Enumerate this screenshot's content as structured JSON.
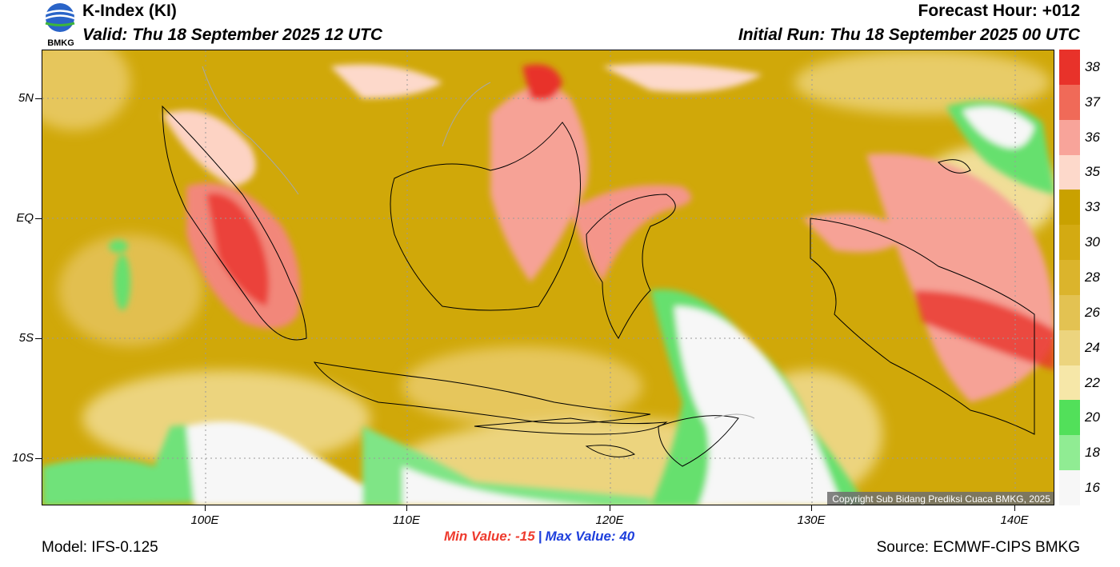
{
  "header": {
    "title": "K-Index (KI)",
    "valid": "Valid: Thu 18 September 2025 12 UTC",
    "forecast_hour": "Forecast Hour: +012",
    "initial_run": "Initial Run: Thu 18 September 2025 00 UTC"
  },
  "logo": {
    "text": "BMKG"
  },
  "map": {
    "lat_labels": [
      "5N",
      "EQ",
      "5S",
      "10S"
    ],
    "lon_labels": [
      "100E",
      "110E",
      "120E",
      "130E",
      "140E"
    ],
    "copyright": "Copyright Sub Bidang Prediksi Cuaca BMKG, 2025"
  },
  "colorbar": {
    "labels": [
      "38",
      "37",
      "36",
      "35",
      "33",
      "30",
      "28",
      "26",
      "24",
      "22",
      "20",
      "18",
      "16"
    ],
    "colors": [
      "#e8322a",
      "#f06a58",
      "#f8a49a",
      "#fdd9cb",
      "#c9a100",
      "#d3aa12",
      "#dbb42c",
      "#e3c252",
      "#ecd47e",
      "#f6e7a8",
      "#52e05a",
      "#90ec93",
      "#f7f7f7"
    ]
  },
  "stats": {
    "min_label": "Min Value: -15",
    "separator": "|",
    "max_label": "Max Value:  40"
  },
  "footer": {
    "model": "Model: IFS-0.125",
    "source": "Source: ECMWF-CIPS BMKG"
  }
}
